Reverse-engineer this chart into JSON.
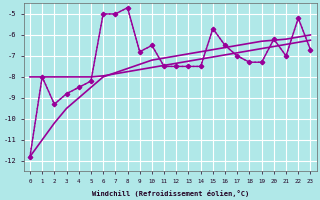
{
  "xlabel": "Windchill (Refroidissement éolien,°C)",
  "xlim": [
    -0.5,
    23.5
  ],
  "ylim": [
    -12.5,
    -4.5
  ],
  "yticks": [
    -12,
    -11,
    -10,
    -9,
    -8,
    -7,
    -6,
    -5
  ],
  "xticks": [
    0,
    1,
    2,
    3,
    4,
    5,
    6,
    7,
    8,
    9,
    10,
    11,
    12,
    13,
    14,
    15,
    16,
    17,
    18,
    19,
    20,
    21,
    22,
    23
  ],
  "bg_color": "#b0e8e8",
  "grid_color": "#ffffff",
  "line_color": "#990099",
  "series": [
    {
      "x": [
        0,
        1,
        2,
        3,
        4,
        5,
        6,
        7,
        8,
        9,
        10,
        11,
        12,
        13,
        14,
        15,
        16,
        17,
        18,
        19,
        20,
        21,
        22,
        23
      ],
      "y": [
        -11.8,
        -8.0,
        -9.3,
        -8.8,
        -8.5,
        -8.2,
        -5.0,
        -5.0,
        -4.7,
        -6.8,
        -6.5,
        -7.5,
        -7.5,
        -7.5,
        -7.5,
        -5.7,
        -6.5,
        -7.0,
        -7.3,
        -7.3,
        -6.2,
        -7.0,
        -5.2,
        -6.7
      ],
      "ls": "-",
      "marker": "D",
      "ms": 2.5,
      "lw": 1.0
    },
    {
      "x": [
        0,
        1,
        2,
        3,
        4,
        5,
        6,
        7,
        8,
        9,
        10,
        11,
        12,
        13,
        14,
        15,
        16,
        17,
        18,
        19,
        20,
        21,
        22,
        23
      ],
      "y": [
        -11.8,
        -8.0,
        -9.3,
        -8.8,
        -8.5,
        -8.2,
        -5.0,
        -5.0,
        -4.7,
        -6.8,
        -6.5,
        -7.5,
        -7.5,
        -7.5,
        -7.5,
        -5.7,
        -6.5,
        -7.0,
        -7.3,
        -7.3,
        -6.2,
        -7.0,
        -5.2,
        -6.7
      ],
      "ls": ":",
      "marker": "D",
      "ms": 2.5,
      "lw": 1.0
    },
    {
      "x": [
        0,
        1,
        2,
        3,
        4,
        5,
        6,
        7,
        8,
        9,
        10,
        11,
        12,
        13,
        14,
        15,
        16,
        17,
        18,
        19,
        20,
        21,
        22,
        23
      ],
      "y": [
        -8.0,
        -8.0,
        -8.0,
        -8.0,
        -8.0,
        -8.0,
        -7.95,
        -7.85,
        -7.75,
        -7.65,
        -7.55,
        -7.45,
        -7.35,
        -7.25,
        -7.15,
        -7.05,
        -6.95,
        -6.85,
        -6.75,
        -6.65,
        -6.55,
        -6.45,
        -6.35,
        -6.25
      ],
      "ls": "-",
      "marker": null,
      "ms": 0,
      "lw": 1.2
    },
    {
      "x": [
        0,
        1,
        2,
        3,
        4,
        5,
        6,
        7,
        8,
        9,
        10,
        11,
        12,
        13,
        14,
        15,
        16,
        17,
        18,
        19,
        20,
        21,
        22,
        23
      ],
      "y": [
        -11.8,
        -11.0,
        -10.2,
        -9.5,
        -9.0,
        -8.5,
        -8.0,
        -7.8,
        -7.6,
        -7.4,
        -7.2,
        -7.1,
        -7.0,
        -6.9,
        -6.8,
        -6.7,
        -6.6,
        -6.5,
        -6.4,
        -6.3,
        -6.25,
        -6.2,
        -6.1,
        -6.0
      ],
      "ls": "-",
      "marker": null,
      "ms": 0,
      "lw": 1.2
    }
  ]
}
